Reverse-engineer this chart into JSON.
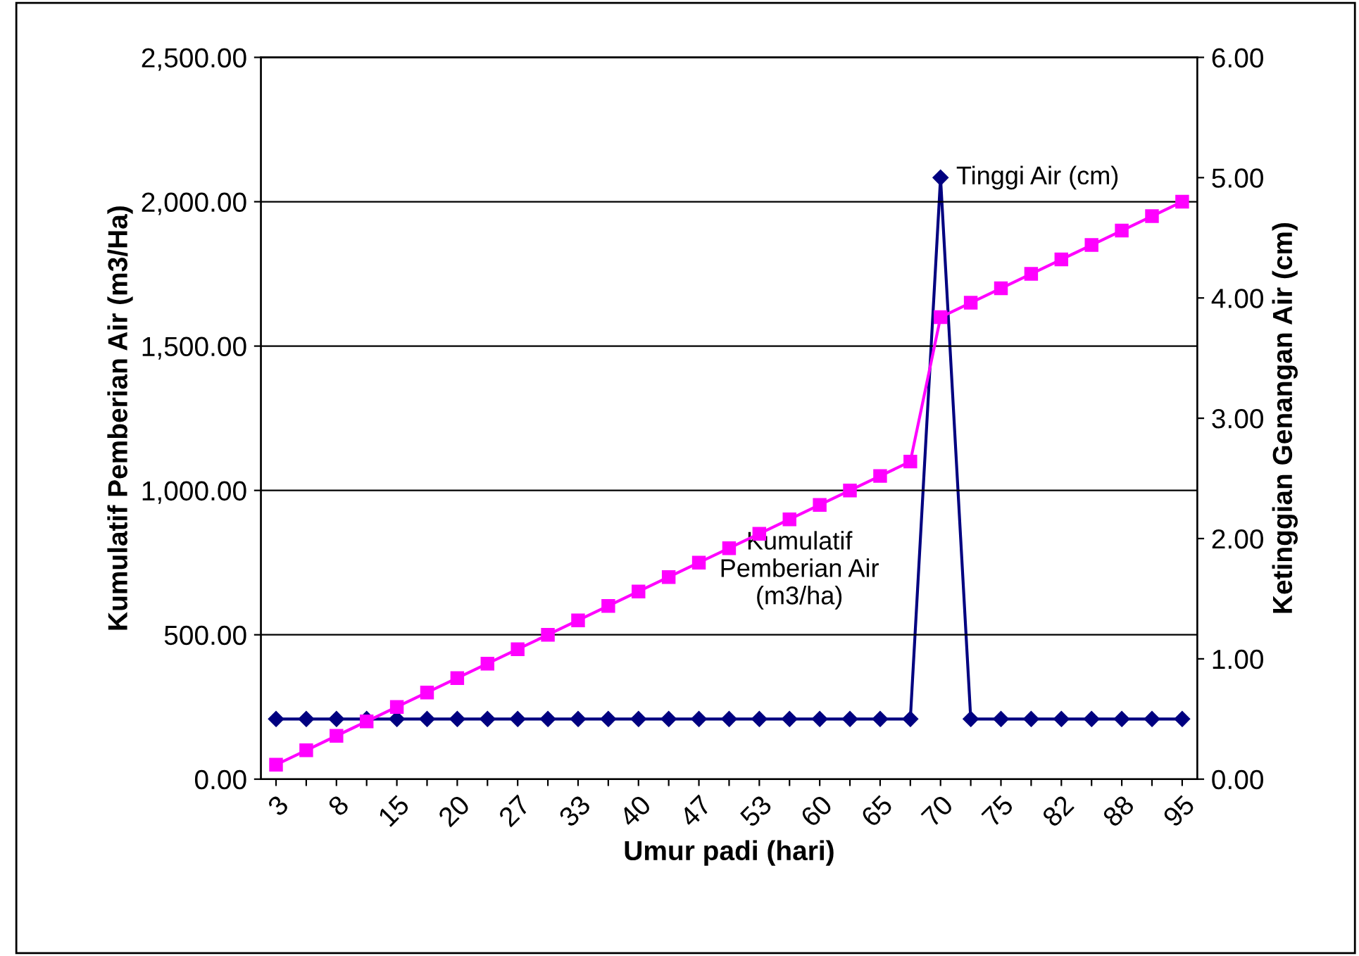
{
  "chart_data": {
    "type": "line",
    "xlabel": "Umur padi (hari)",
    "ylabel": "Kumulatif Pemberian Air (m3/Ha)",
    "y2label": "Ketinggian Genangan Air (cm)",
    "categories": [
      "3",
      null,
      "8",
      null,
      "15",
      null,
      "20",
      null,
      "27",
      null,
      "33",
      null,
      "40",
      null,
      "47",
      null,
      "53",
      null,
      "60",
      null,
      "65",
      null,
      "70",
      null,
      "75",
      null,
      "82",
      null,
      "88",
      null,
      "95"
    ],
    "series": [
      {
        "name": "Kumulatif Pemberian Air (m3/ha)",
        "color": "#ff00ff",
        "marker": "square",
        "values": [
          50,
          100,
          150,
          200,
          250,
          300,
          350,
          400,
          450,
          500,
          550,
          600,
          650,
          700,
          750,
          800,
          850,
          900,
          950,
          1000,
          1050,
          1100,
          1600,
          1650,
          1700,
          1750,
          1800,
          1850,
          1900,
          1950,
          2000
        ]
      },
      {
        "name": "Tinggi Air (cm)",
        "color": "#000080",
        "marker": "diamond",
        "axis": "y2",
        "values": [
          0.5,
          0.5,
          0.5,
          0.5,
          0.5,
          0.5,
          0.5,
          0.5,
          0.5,
          0.5,
          0.5,
          0.5,
          0.5,
          0.5,
          0.5,
          0.5,
          0.5,
          0.5,
          0.5,
          0.5,
          0.5,
          0.5,
          5.0,
          0.5,
          0.5,
          0.5,
          0.5,
          0.5,
          0.5,
          0.5,
          0.5
        ]
      }
    ],
    "ylim": [
      0,
      2500
    ],
    "yticks": [
      {
        "value": 0,
        "label": "0.00"
      },
      {
        "value": 500,
        "label": "500.00"
      },
      {
        "value": 1000,
        "label": "1,000.00"
      },
      {
        "value": 1500,
        "label": "1,500.00"
      },
      {
        "value": 2000,
        "label": "2,000.00"
      },
      {
        "value": 2500,
        "label": "2,500.00"
      }
    ],
    "y2lim": [
      0,
      6
    ],
    "y2ticks": [
      {
        "value": 0,
        "label": "0.00"
      },
      {
        "value": 1,
        "label": "1.00"
      },
      {
        "value": 2,
        "label": "2.00"
      },
      {
        "value": 3,
        "label": "3.00"
      },
      {
        "value": 4,
        "label": "4.00"
      },
      {
        "value": 5,
        "label": "5.00"
      },
      {
        "value": 6,
        "label": "6.00"
      }
    ],
    "grid": "y",
    "legend": false
  }
}
